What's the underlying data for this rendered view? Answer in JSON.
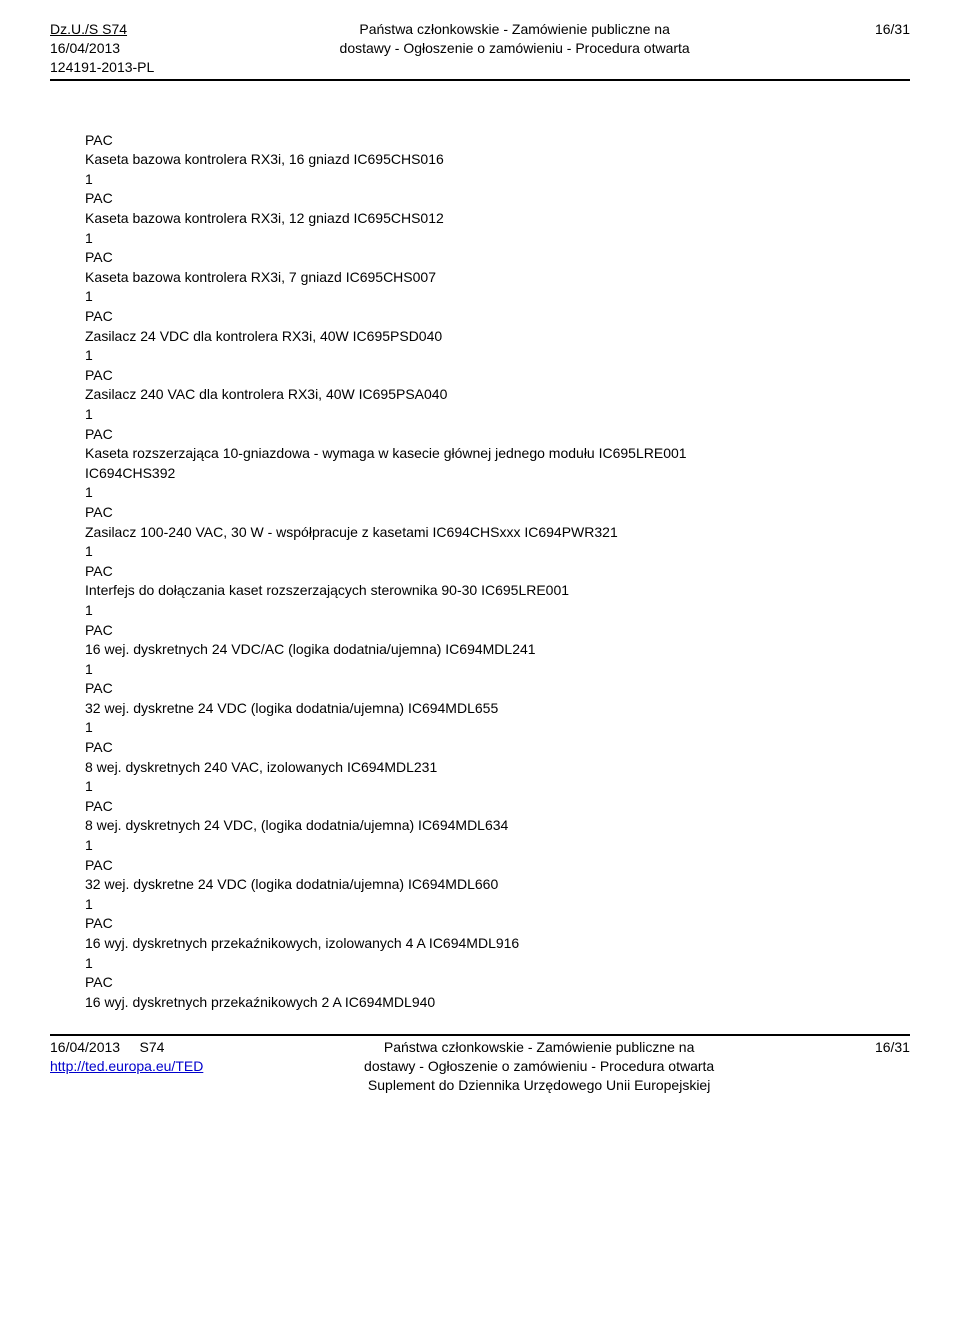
{
  "header": {
    "left_line1": "Dz.U./S S74",
    "left_line2": "16/04/2013",
    "left_line3": "124191-2013-PL",
    "center_line1": "Państwa członkowskie - Zamówienie publiczne na",
    "center_line2": "dostawy - Ogłoszenie o zamówieniu - Procedura otwarta",
    "right_line1": "16/31"
  },
  "content_lines": [
    "PAC",
    "Kaseta bazowa kontrolera RX3i, 16 gniazd IC695CHS016",
    "1",
    "PAC",
    "Kaseta bazowa kontrolera RX3i, 12 gniazd IC695CHS012",
    "1",
    "PAC",
    "Kaseta bazowa kontrolera RX3i, 7 gniazd IC695CHS007",
    "1",
    "PAC",
    "Zasilacz 24 VDC dla kontrolera RX3i, 40W IC695PSD040",
    "1",
    "PAC",
    "Zasilacz 240 VAC dla kontrolera RX3i, 40W IC695PSA040",
    "1",
    "PAC",
    "Kaseta rozszerzająca 10-gniazdowa - wymaga w kasecie głównej jednego modułu IC695LRE001",
    "IC694CHS392",
    "1",
    "PAC",
    "Zasilacz 100-240 VAC, 30 W - współpracuje z kasetami IC694CHSxxx IC694PWR321",
    "1",
    "PAC",
    "Interfejs do dołączania kaset rozszerzających sterownika 90-30 IC695LRE001",
    "1",
    "PAC",
    "16 wej. dyskretnych 24 VDC/AC (logika dodatnia/ujemna) IC694MDL241",
    "1",
    "PAC",
    "32 wej. dyskretne 24 VDC (logika dodatnia/ujemna) IC694MDL655",
    "1",
    "PAC",
    "8 wej. dyskretnych 240 VAC, izolowanych IC694MDL231",
    "1",
    "PAC",
    "8 wej. dyskretnych 24 VDC, (logika dodatnia/ujemna) IC694MDL634",
    "1",
    "PAC",
    "32 wej. dyskretne 24 VDC (logika dodatnia/ujemna) IC694MDL660",
    "1",
    "PAC",
    "16 wyj. dyskretnych przekaźnikowych, izolowanych 4 A IC694MDL916",
    "1",
    "PAC",
    "16 wyj. dyskretnych przekaźnikowych 2 A IC694MDL940"
  ],
  "footer": {
    "left_line1a": "16/04/2013",
    "left_line1b": "S74",
    "left_line2": "http://ted.europa.eu/TED",
    "center_line1": "Państwa członkowskie - Zamówienie publiczne na",
    "center_line2": "dostawy - Ogłoszenie o zamówieniu - Procedura otwarta",
    "center_line3": "Suplement do Dziennika Urzędowego Unii Europejskiej",
    "right_line1": "16/31"
  }
}
